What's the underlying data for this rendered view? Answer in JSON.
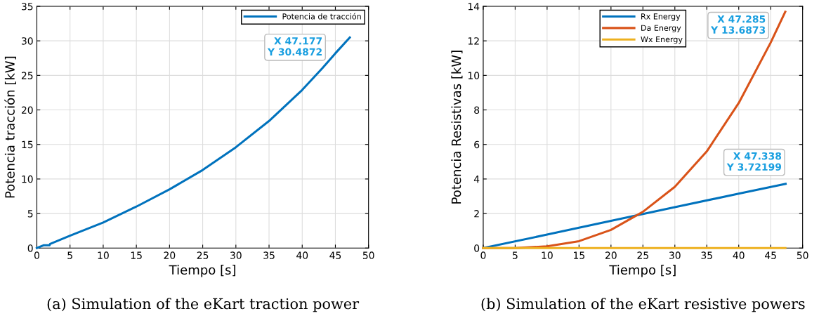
{
  "chart_data": [
    {
      "type": "line",
      "xlabel": "Tiempo [s]",
      "ylabel": "Potencia tracción [kW]",
      "xlim": [
        0,
        50
      ],
      "ylim": [
        0,
        35
      ],
      "xticks": [
        0,
        5,
        10,
        15,
        20,
        25,
        30,
        35,
        40,
        45,
        50
      ],
      "yticks": [
        0,
        5,
        10,
        15,
        20,
        25,
        30,
        35
      ],
      "grid": true,
      "legend": "top right",
      "series": [
        {
          "name": "Potencia de tracción",
          "color": "#0072bd",
          "x": [
            0,
            1,
            1.9,
            2,
            5,
            10,
            15,
            20,
            25,
            30,
            35,
            40,
            43,
            45,
            47.177
          ],
          "values": [
            0,
            0.4,
            0.4,
            0.6,
            1.8,
            3.7,
            6.0,
            8.5,
            11.3,
            14.6,
            18.4,
            22.9,
            26.0,
            28.2,
            30.4872
          ]
        }
      ],
      "annotations": [
        {
          "text": "X 47.177\nY 30.4872",
          "x": 47.177,
          "y": 30.4872
        },
        "(a) Simulation of the eKart traction power"
      ]
    },
    {
      "type": "line",
      "xlabel": "Tiempo [s]",
      "ylabel": "Potencia Resistivas [kW]",
      "xlim": [
        0,
        50
      ],
      "ylim": [
        0,
        14
      ],
      "xticks": [
        0,
        5,
        10,
        15,
        20,
        25,
        30,
        35,
        40,
        45,
        50
      ],
      "yticks": [
        0,
        2,
        4,
        6,
        8,
        10,
        12,
        14
      ],
      "grid": true,
      "legend": "top",
      "series": [
        {
          "name": "Rx Energy",
          "color": "#0072bd",
          "x": [
            0,
            10,
            20,
            25,
            30,
            40,
            47.338
          ],
          "values": [
            0,
            0.78,
            1.58,
            1.97,
            2.37,
            3.15,
            3.72199
          ]
        },
        {
          "name": "Da Energy",
          "color": "#d95319",
          "x": [
            0,
            5,
            10,
            15,
            20,
            25,
            30,
            35,
            40,
            45,
            47.285
          ],
          "values": [
            0,
            0,
            0.1,
            0.4,
            1.05,
            2.1,
            3.55,
            5.6,
            8.4,
            11.9,
            13.6873
          ]
        },
        {
          "name": "Wx Energy",
          "color": "#edb120",
          "x": [
            0,
            47.3
          ],
          "values": [
            0,
            0
          ]
        }
      ],
      "annotations": [
        {
          "text": "X 47.285\nY 13.6873",
          "x": 47.285,
          "y": 13.6873
        },
        {
          "text": "X 47.338\nY 3.72199",
          "x": 47.338,
          "y": 3.72199
        },
        "(b) Simulation of the eKart resistive powers"
      ]
    }
  ]
}
